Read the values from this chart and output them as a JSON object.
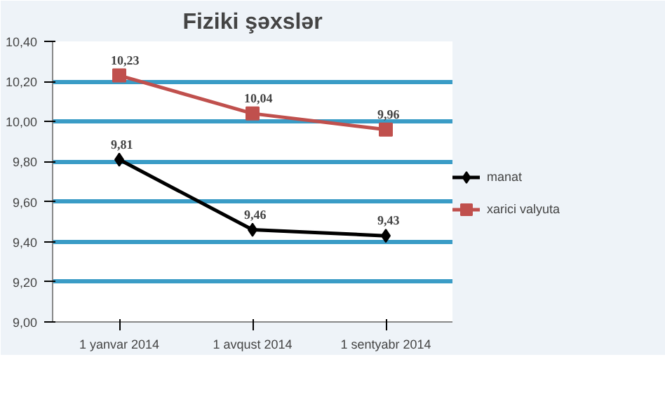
{
  "chart_data": {
    "type": "line",
    "title": "Fiziki şəxslər",
    "categories": [
      "1 yanvar 2014",
      "1 avqust 2014",
      "1 sentyabr 2014"
    ],
    "series": [
      {
        "name": "manat",
        "color": "#000000",
        "marker": "diamond",
        "values": [
          9.81,
          9.46,
          9.43
        ],
        "value_labels": [
          "9,81",
          "9,46",
          "9,43"
        ]
      },
      {
        "name": "xarici valyuta",
        "color": "#c0504d",
        "marker": "square",
        "values": [
          10.23,
          10.04,
          9.96
        ],
        "value_labels": [
          "10,23",
          "10,04",
          "9,96"
        ]
      }
    ],
    "ylim": [
      9.0,
      10.4
    ],
    "yticks": [
      {
        "value": 9.0,
        "label": "9,00"
      },
      {
        "value": 9.2,
        "label": "9,20"
      },
      {
        "value": 9.4,
        "label": "9,40"
      },
      {
        "value": 9.6,
        "label": "9,60"
      },
      {
        "value": 9.8,
        "label": "9,80"
      },
      {
        "value": 10.0,
        "label": "10,00"
      },
      {
        "value": 10.2,
        "label": "10,20"
      },
      {
        "value": 10.4,
        "label": "10,40"
      }
    ],
    "grid": "y",
    "legend": "right",
    "line_style": "solid"
  }
}
